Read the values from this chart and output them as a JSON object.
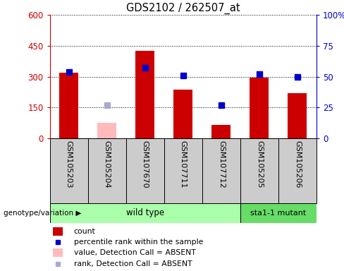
{
  "title": "GDS2102 / 262507_at",
  "samples": [
    "GSM105203",
    "GSM105204",
    "GSM107670",
    "GSM107711",
    "GSM107712",
    "GSM105205",
    "GSM105206"
  ],
  "bar_values": [
    320,
    null,
    425,
    238,
    65,
    295,
    218
  ],
  "bar_absent_values": [
    null,
    75,
    null,
    null,
    null,
    null,
    null
  ],
  "rank_values": [
    54,
    null,
    57,
    51,
    27,
    52,
    50
  ],
  "rank_absent_values": [
    null,
    27,
    null,
    null,
    null,
    null,
    null
  ],
  "bar_color": "#cc0000",
  "bar_absent_color": "#ffbbbb",
  "rank_color": "#0000cc",
  "rank_absent_color": "#aaaacc",
  "genotype_labels": [
    "wild type",
    "sta1-1 mutant"
  ],
  "genotype_colors": [
    "#aaffaa",
    "#66dd66"
  ],
  "wild_type_count": 5,
  "ylim_left": [
    0,
    600
  ],
  "ylim_right": [
    0,
    100
  ],
  "yticks_left": [
    0,
    150,
    300,
    450,
    600
  ],
  "ytick_labels_left": [
    "0",
    "150",
    "300",
    "450",
    "600"
  ],
  "yticks_right": [
    0,
    25,
    50,
    75,
    100
  ],
  "ytick_labels_right": [
    "0",
    "25",
    "50",
    "75",
    "100%"
  ],
  "left_axis_color": "#cc0000",
  "right_axis_color": "#0000cc",
  "label_bg_color": "#cccccc",
  "bar_width": 0.5,
  "legend_items": [
    {
      "color": "#cc0000",
      "type": "rect",
      "label": "count"
    },
    {
      "color": "#0000cc",
      "type": "square",
      "label": "percentile rank within the sample"
    },
    {
      "color": "#ffbbbb",
      "type": "rect",
      "label": "value, Detection Call = ABSENT"
    },
    {
      "color": "#aaaacc",
      "type": "square",
      "label": "rank, Detection Call = ABSENT"
    }
  ]
}
